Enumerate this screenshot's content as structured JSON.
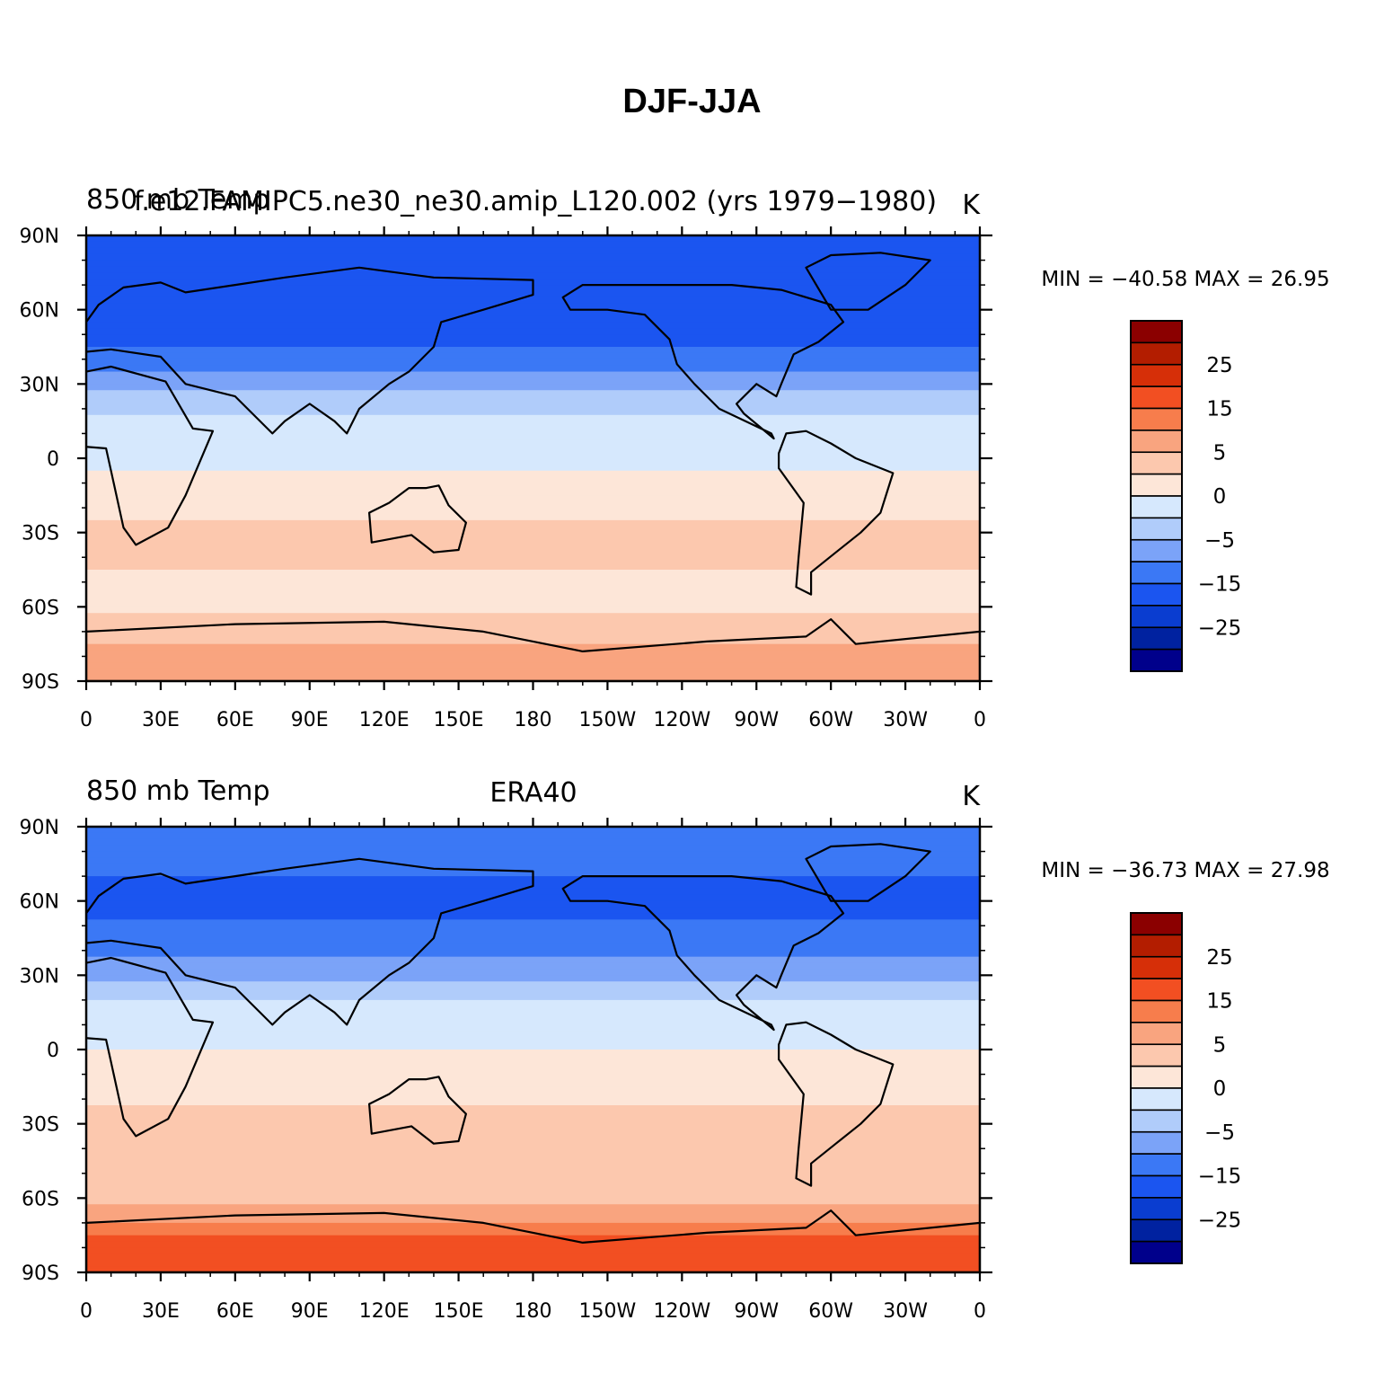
{
  "figure": {
    "title": "DJF-JJA"
  },
  "colorbar": {
    "colors": [
      "#00008b",
      "#0022a0",
      "#0a3dd0",
      "#1b55f0",
      "#3b78f5",
      "#7ba3f8",
      "#b0ccfa",
      "#d6e8fd",
      "#fde6d8",
      "#fcc8ae",
      "#f9a47f",
      "#f77d4c",
      "#f24f22",
      "#d62f08",
      "#b31d00",
      "#8b0000"
    ],
    "tick_labels": [
      "25",
      "15",
      "5",
      "0",
      "-5",
      "-15",
      "-25"
    ],
    "tick_display": [
      "25",
      "15",
      "5",
      "0",
      "−5",
      "−15",
      "−25"
    ]
  },
  "chart_data": [
    {
      "type": "heatmap",
      "panel": "model",
      "left_title": "850 mb Temp",
      "center_title": "f.e12.FAMIPC5.ne30_ne30.amip_L120.002 (yrs 1979-1980)",
      "center_title_display": "f.e12.FAMIPC5.ne30_ne30.amip_L120.002 (yrs 1979−1980)",
      "units": "K",
      "min_max_text": "MIN = −40.58  MAX =   26.95",
      "min": -40.58,
      "max": 26.95,
      "x_tick_labels": [
        "0",
        "30E",
        "60E",
        "90E",
        "120E",
        "150E",
        "180",
        "150W",
        "120W",
        "90W",
        "60W",
        "30W",
        "0"
      ],
      "y_tick_labels": [
        "90N",
        "60N",
        "30N",
        "0",
        "30S",
        "60S",
        "90S"
      ],
      "xlim": [
        0,
        360
      ],
      "ylim": [
        -90,
        90
      ],
      "zonal_profile": [
        {
          "lat": 90,
          "value": -22
        },
        {
          "lat": 75,
          "value": -20
        },
        {
          "lat": 60,
          "value": -24
        },
        {
          "lat": 45,
          "value": -20
        },
        {
          "lat": 30,
          "value": -12
        },
        {
          "lat": 15,
          "value": -3
        },
        {
          "lat": 0,
          "value": -1
        },
        {
          "lat": -15,
          "value": 2
        },
        {
          "lat": -30,
          "value": 7
        },
        {
          "lat": -45,
          "value": 5
        },
        {
          "lat": -60,
          "value": 4
        },
        {
          "lat": -75,
          "value": 10
        },
        {
          "lat": -90,
          "value": 12
        }
      ]
    },
    {
      "type": "heatmap",
      "panel": "obs",
      "left_title": "850 mb Temp",
      "center_title": "ERA40",
      "units": "K",
      "min_max_text": "MIN = −36.73  MAX =   27.98",
      "min": -36.73,
      "max": 27.98,
      "x_tick_labels": [
        "0",
        "30E",
        "60E",
        "90E",
        "120E",
        "150E",
        "180",
        "150W",
        "120W",
        "90W",
        "60W",
        "30W",
        "0"
      ],
      "y_tick_labels": [
        "90N",
        "60N",
        "30N",
        "0",
        "30S",
        "60S",
        "90S"
      ],
      "xlim": [
        0,
        360
      ],
      "ylim": [
        -90,
        90
      ],
      "zonal_profile": [
        {
          "lat": 90,
          "value": -20
        },
        {
          "lat": 75,
          "value": -19
        },
        {
          "lat": 60,
          "value": -22
        },
        {
          "lat": 45,
          "value": -18
        },
        {
          "lat": 30,
          "value": -11
        },
        {
          "lat": 15,
          "value": -2
        },
        {
          "lat": 0,
          "value": 0
        },
        {
          "lat": -15,
          "value": 3
        },
        {
          "lat": -30,
          "value": 7
        },
        {
          "lat": -45,
          "value": 6
        },
        {
          "lat": -60,
          "value": 8
        },
        {
          "lat": -75,
          "value": 20
        },
        {
          "lat": -90,
          "value": 24
        }
      ]
    }
  ]
}
